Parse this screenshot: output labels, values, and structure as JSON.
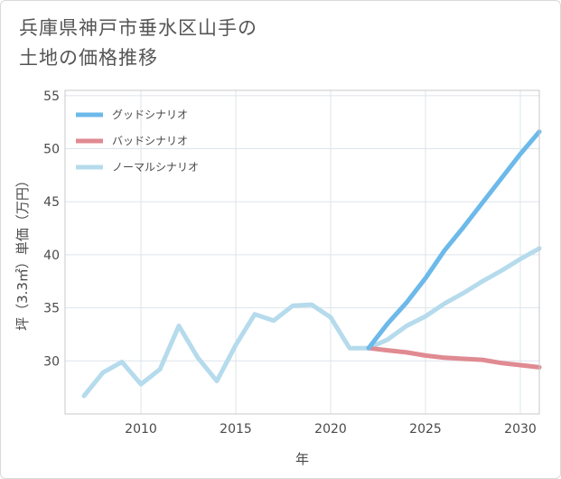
{
  "title_lines": [
    "兵庫県神戸市垂水区山手の",
    "土地の価格推移"
  ],
  "chart_data": {
    "type": "line",
    "title": "兵庫県神戸市垂水区山手の土地の価格推移",
    "xlabel": "年",
    "ylabel": "坪（3.3㎡）単価（万円）",
    "xlim": [
      2006,
      2031
    ],
    "ylim": [
      25,
      55.5
    ],
    "xticks": [
      2010,
      2015,
      2020,
      2025,
      2030
    ],
    "yticks": [
      30,
      35,
      40,
      45,
      50,
      55
    ],
    "grid": true,
    "legend_position": "top-left",
    "series": [
      {
        "name": "グッドシナリオ",
        "color": "#6cb9ea",
        "x": [
          2022,
          2023,
          2024,
          2025,
          2026,
          2027,
          2028,
          2029,
          2030,
          2031
        ],
        "values": [
          31.2,
          33.5,
          35.5,
          37.8,
          40.4,
          42.6,
          44.9,
          47.2,
          49.5,
          51.6
        ]
      },
      {
        "name": "バッドシナリオ",
        "color": "#e08a92",
        "x": [
          2022,
          2023,
          2024,
          2025,
          2026,
          2027,
          2028,
          2029,
          2030,
          2031
        ],
        "values": [
          31.2,
          31.0,
          30.8,
          30.5,
          30.3,
          30.2,
          30.1,
          29.8,
          29.6,
          29.4
        ]
      },
      {
        "name": "ノーマルシナリオ",
        "color": "#b5dbec",
        "x": [
          2007,
          2008,
          2009,
          2010,
          2011,
          2012,
          2013,
          2014,
          2015,
          2016,
          2017,
          2018,
          2019,
          2020,
          2021,
          2022,
          2023,
          2024,
          2025,
          2026,
          2027,
          2028,
          2029,
          2030,
          2031
        ],
        "values": [
          26.7,
          28.9,
          29.9,
          27.8,
          29.2,
          33.3,
          30.3,
          28.1,
          31.5,
          34.4,
          33.8,
          35.2,
          35.3,
          34.1,
          31.2,
          31.2,
          32.0,
          33.3,
          34.2,
          35.4,
          36.4,
          37.5,
          38.5,
          39.6,
          40.6
        ]
      }
    ]
  }
}
